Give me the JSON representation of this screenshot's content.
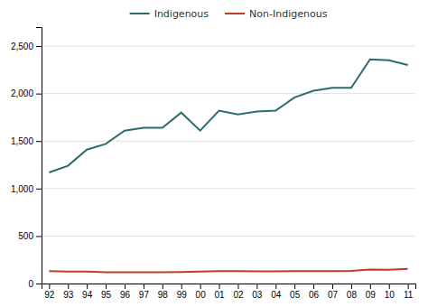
{
  "chart_data": {
    "type": "line",
    "categories": [
      "92",
      "93",
      "94",
      "95",
      "96",
      "97",
      "98",
      "99",
      "00",
      "01",
      "02",
      "03",
      "04",
      "05",
      "06",
      "07",
      "08",
      "09",
      "10",
      "11"
    ],
    "series": [
      {
        "name": "Indigenous",
        "color": "#2e6b6b",
        "values": [
          1170,
          1240,
          1410,
          1470,
          1610,
          1640,
          1640,
          1800,
          1610,
          1820,
          1780,
          1810,
          1820,
          1960,
          2030,
          2060,
          2060,
          2360,
          2350,
          2300
        ]
      },
      {
        "name": "Non-Indigenous",
        "color": "#c0392b",
        "values": [
          130,
          125,
          125,
          120,
          120,
          118,
          120,
          122,
          125,
          130,
          130,
          128,
          128,
          130,
          130,
          130,
          132,
          148,
          145,
          155
        ]
      }
    ],
    "ylim": [
      0,
      2700
    ],
    "yticks": [
      0,
      500,
      {
        "value": 1000,
        "label": "1,000"
      },
      {
        "value": 1500,
        "label": "1,500"
      },
      {
        "value": 2000,
        "label": "2,000"
      },
      {
        "value": 2500,
        "label": "2,500"
      }
    ],
    "grid": true,
    "legend": "top"
  }
}
